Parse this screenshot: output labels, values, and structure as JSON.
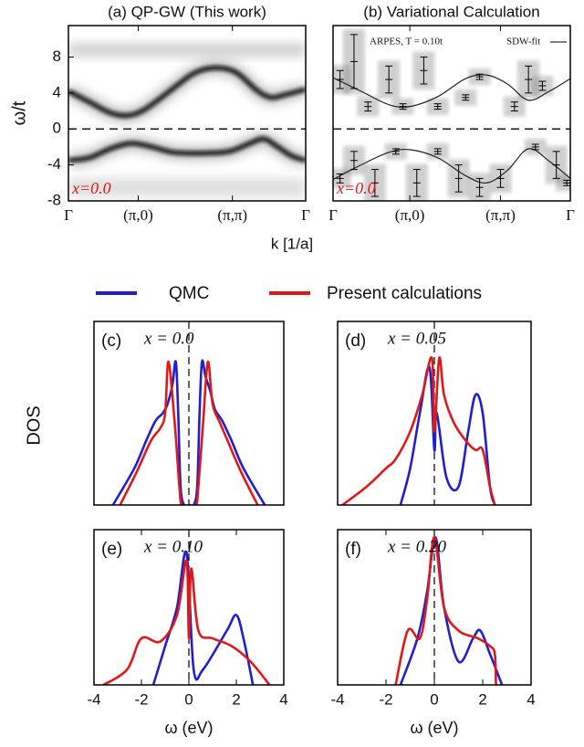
{
  "chart_data": [
    {
      "type": "band",
      "panel_title": "(a) QP-GW (This work)",
      "annotation": "x=0.0",
      "x_label": "k [1/a]",
      "y_label": "ω/t",
      "xlim": [
        0,
        3.4
      ],
      "xticks": [
        {
          "value": 0,
          "label": "Γ"
        },
        {
          "value": 1.0,
          "label": "(π,0)"
        },
        {
          "value": 2.35,
          "label": "(π,π)"
        },
        {
          "value": 3.4,
          "label": "Γ"
        }
      ],
      "ylim": [
        -8,
        11.5
      ],
      "yticks": [
        -8,
        -4,
        0,
        4,
        8
      ],
      "series": [
        {
          "color": "#111111",
          "x": [
            0,
            0.3,
            0.6,
            0.85,
            1.1,
            1.5,
            1.8,
            2.1,
            2.4,
            2.7,
            2.9,
            3.1,
            3.4
          ],
          "values": [
            4.2,
            3.0,
            1.8,
            1.5,
            2.2,
            4.5,
            6.2,
            6.8,
            6.3,
            4.3,
            3.5,
            3.8,
            4.4
          ]
        },
        {
          "color": "#111111",
          "x": [
            0,
            0.3,
            0.6,
            0.9,
            1.2,
            1.5,
            1.9,
            2.3,
            2.6,
            2.8,
            3.0,
            3.2,
            3.4
          ],
          "values": [
            -3.5,
            -3.2,
            -2.2,
            -1.6,
            -2.0,
            -2.6,
            -2.7,
            -2.5,
            -1.6,
            -1.1,
            -2.0,
            -3.0,
            -3.5
          ]
        }
      ]
    },
    {
      "type": "errorbar",
      "panel_title": "(b) Variational Calculation",
      "annotation": "x=0.0",
      "data_label": "ARPES, T = 0.10t",
      "fit_label": "SDW-fit",
      "xlim": [
        0,
        3.4
      ],
      "xticks": [
        {
          "value": 0,
          "label": "Γ"
        },
        {
          "value": 1.1,
          "label": "(π,0)"
        },
        {
          "value": 2.4,
          "label": "(π,π)"
        },
        {
          "value": 3.4,
          "label": "Γ"
        }
      ],
      "ylim": [
        -8,
        11.5
      ],
      "points": {
        "x": [
          0.1,
          0.3,
          0.5,
          0.8,
          1.0,
          1.3,
          1.5,
          1.9,
          2.1,
          2.6,
          2.8,
          3.0,
          0.1,
          0.3,
          0.6,
          0.9,
          1.2,
          1.5,
          1.8,
          2.1,
          2.4,
          2.9,
          3.2,
          3.35
        ],
        "values": [
          5.5,
          7.5,
          2.5,
          5.5,
          2.5,
          6.5,
          2.5,
          3.5,
          5.8,
          2.5,
          5.5,
          4.8,
          -5.5,
          -3.5,
          -6.0,
          -2.5,
          -6.0,
          -2.5,
          -5.5,
          -6.5,
          -5.5,
          -2.0,
          -4.0,
          -6.0
        ],
        "errors": [
          1.0,
          3.0,
          0.5,
          1.5,
          0.3,
          1.5,
          0.3,
          0.3,
          0.3,
          0.5,
          1.5,
          0.5,
          0.5,
          1.0,
          1.5,
          0.3,
          1.5,
          0.3,
          1.5,
          1.0,
          1.0,
          0.3,
          1.5,
          0.3
        ]
      },
      "fit": [
        {
          "color": "#222222",
          "x": [
            0,
            0.4,
            0.8,
            1.1,
            1.5,
            1.9,
            2.2,
            2.5,
            2.8,
            3.1,
            3.4
          ],
          "values": [
            5.7,
            4.2,
            2.7,
            2.5,
            3.6,
            5.6,
            6.0,
            5.0,
            3.2,
            4.2,
            5.6
          ]
        },
        {
          "color": "#222222",
          "x": [
            0,
            0.4,
            0.8,
            1.1,
            1.5,
            1.9,
            2.2,
            2.5,
            2.8,
            3.1,
            3.4
          ],
          "values": [
            -5.6,
            -4.0,
            -2.6,
            -2.3,
            -3.2,
            -5.2,
            -6.0,
            -4.6,
            -2.2,
            -3.6,
            -5.5
          ]
        }
      ]
    },
    {
      "type": "line",
      "panel_label": "(c)",
      "annotation": "x = 0.0",
      "y_label": "DOS",
      "xlim": [
        -4,
        4
      ],
      "ylim": [
        0,
        1
      ],
      "series": [
        {
          "name": "QMC",
          "color": "#1f1fd0",
          "x": [
            -3.2,
            -2.3,
            -1.8,
            -1.4,
            -1.1,
            -0.9,
            -0.7,
            -0.55,
            -0.45,
            -0.35,
            -0.2,
            0,
            0.2,
            0.35,
            0.45,
            0.55,
            0.7,
            0.9,
            1.1,
            1.4,
            1.8,
            2.3,
            3.2
          ],
          "values": [
            0,
            0.2,
            0.35,
            0.46,
            0.5,
            0.55,
            0.65,
            0.78,
            0.5,
            0.1,
            0,
            0,
            0,
            0.1,
            0.5,
            0.78,
            0.7,
            0.62,
            0.52,
            0.46,
            0.35,
            0.2,
            0
          ]
        },
        {
          "name": "Present calculations",
          "color": "#e01818",
          "x": [
            -2.9,
            -2.2,
            -1.6,
            -1.2,
            -1.0,
            -0.86,
            -0.6,
            -0.4,
            -0.3,
            0,
            0.3,
            0.4,
            0.6,
            0.8,
            1.0,
            1.3,
            1.6,
            2.2,
            2.9
          ],
          "values": [
            0,
            0.18,
            0.35,
            0.42,
            0.5,
            0.78,
            0.45,
            0.1,
            0,
            0,
            0,
            0.1,
            0.45,
            0.78,
            0.55,
            0.45,
            0.36,
            0.18,
            0
          ]
        }
      ]
    },
    {
      "type": "line",
      "panel_label": "(d)",
      "annotation": "x = 0.05",
      "xlim": [
        -4,
        4
      ],
      "ylim": [
        0,
        1
      ],
      "series": [
        {
          "color": "#1f1fd0",
          "x": [
            -1.4,
            -1.0,
            -0.6,
            -0.2,
            0,
            0.1,
            0.5,
            1.0,
            1.4,
            1.7,
            2.0,
            2.3,
            2.5
          ],
          "values": [
            0,
            0.2,
            0.5,
            0.75,
            0.3,
            0.5,
            0.15,
            0.1,
            0.4,
            0.6,
            0.5,
            0.1,
            0
          ]
        },
        {
          "color": "#e01818",
          "x": [
            -3.8,
            -2.8,
            -2.0,
            -1.6,
            -1.0,
            -0.5,
            -0.1,
            0,
            0.2,
            0.4,
            0.8,
            1.3,
            1.7,
            2.0,
            2.3,
            2.5
          ],
          "values": [
            0,
            0.1,
            0.2,
            0.25,
            0.4,
            0.6,
            0.8,
            0.4,
            0.8,
            0.6,
            0.45,
            0.35,
            0.3,
            0.3,
            0.1,
            0
          ]
        }
      ]
    },
    {
      "type": "line",
      "panel_label": "(e)",
      "annotation": "x = 0.10",
      "x_label": "ω (eV)",
      "xlim": [
        -4,
        4
      ],
      "xticks": [
        -4,
        -2,
        0,
        2,
        4
      ],
      "ylim": [
        0,
        1
      ],
      "series": [
        {
          "color": "#1f1fd0",
          "x": [
            -1.5,
            -1.0,
            -0.5,
            -0.1,
            0.2,
            0.6,
            1.6,
            2.0,
            2.3,
            2.7
          ],
          "values": [
            0,
            0.25,
            0.5,
            0.85,
            0.1,
            0.1,
            0.35,
            0.45,
            0.3,
            0
          ]
        },
        {
          "color": "#e01818",
          "x": [
            -3.6,
            -2.6,
            -2.0,
            -1.2,
            -0.5,
            -0.1,
            0,
            0.1,
            0.4,
            1.0,
            1.8,
            2.6,
            3.4
          ],
          "values": [
            0,
            0.1,
            0.3,
            0.28,
            0.45,
            0.8,
            0.3,
            0.75,
            0.35,
            0.3,
            0.25,
            0.15,
            0
          ]
        }
      ]
    },
    {
      "type": "line",
      "panel_label": "(f)",
      "annotation": "x = 0.20",
      "x_label": "ω (eV)",
      "xlim": [
        -4,
        4
      ],
      "xticks": [
        -4,
        -2,
        0,
        2,
        4
      ],
      "ylim": [
        0,
        1
      ],
      "series": [
        {
          "color": "#1f1fd0",
          "x": [
            -1.4,
            -0.7,
            -0.3,
            0.05,
            0.4,
            1.0,
            1.6,
            1.9,
            2.3,
            2.8
          ],
          "values": [
            0,
            0.3,
            0.6,
            0.95,
            0.5,
            0.15,
            0.3,
            0.35,
            0.2,
            0
          ]
        },
        {
          "color": "#e01818",
          "x": [
            -1.6,
            -1.1,
            -0.6,
            -0.3,
            0,
            0.4,
            1.0,
            1.8,
            2.3,
            2.5,
            2.55
          ],
          "values": [
            0,
            0.35,
            0.3,
            0.55,
            0.95,
            0.5,
            0.35,
            0.3,
            0.25,
            0.2,
            0
          ]
        }
      ]
    }
  ]
}
